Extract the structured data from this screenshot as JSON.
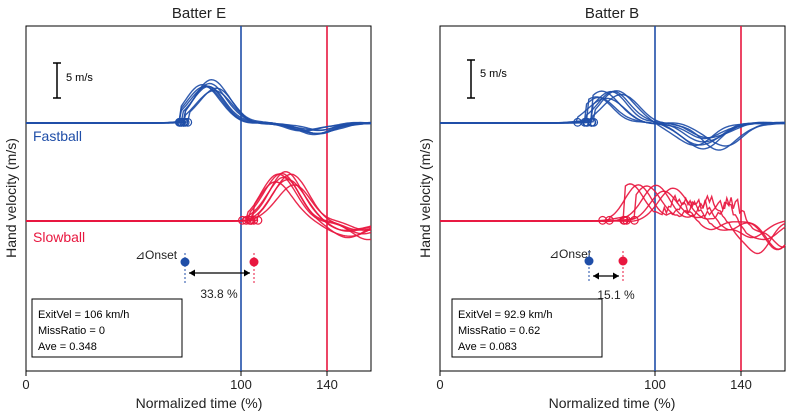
{
  "figure": {
    "ylabel": "Hand velocity (m/s)",
    "xlabel": "Normalized time (%)",
    "xticks": [
      "0",
      "100",
      "140"
    ],
    "scalebar_label": "5 m/s",
    "fast_label": "Fastball",
    "slow_label": "Slowball",
    "onset_label": "⊿Onset",
    "colors": {
      "fast": "#1f4ea8",
      "slow": "#e8173f",
      "axis": "#000000",
      "text": "#222222"
    }
  },
  "chart_data": [
    {
      "type": "line",
      "title": "Batter E",
      "xlabel": "Normalized time (%)",
      "ylabel": "Hand velocity (m/s)",
      "xlim": [
        0,
        160
      ],
      "x_ticks": [
        0,
        100,
        140
      ],
      "scale_bar_ms": 5,
      "vlines": [
        {
          "x": 100,
          "color": "#1f4ea8"
        },
        {
          "x": 140,
          "color": "#e8173f"
        }
      ],
      "series": [
        {
          "name": "Fastball",
          "color": "#1f4ea8",
          "traces": 8,
          "onset_x": [
            70,
            76
          ],
          "peak_x": [
            82,
            88
          ],
          "peak_ms": 6.0,
          "dip_x": [
            128,
            136
          ],
          "dip_ms": -1.5,
          "trend": "smooth"
        },
        {
          "name": "Slowball",
          "color": "#e8173f",
          "traces": 8,
          "onset_x": [
            98,
            110
          ],
          "peak_x": [
            116,
            124
          ],
          "peak_ms": 6.5,
          "dip_x": [
            148,
            160
          ],
          "dip_ms": -2.0,
          "trend": "smooth"
        }
      ],
      "onset_markers": {
        "label": "⊿Onset",
        "fast_x": 73,
        "slow_x": 106,
        "diff_label": "33.8 %"
      },
      "stats": {
        "exit_vel": "ExitVel = 106 km/h",
        "miss_ratio": "MissRatio = 0",
        "ave": "Ave = 0.348"
      }
    },
    {
      "type": "line",
      "title": "Batter B",
      "xlabel": "Normalized time (%)",
      "ylabel": "Hand velocity (m/s)",
      "xlim": [
        0,
        160
      ],
      "x_ticks": [
        0,
        100,
        140
      ],
      "scale_bar_ms": 5,
      "vlines": [
        {
          "x": 100,
          "color": "#1f4ea8"
        },
        {
          "x": 140,
          "color": "#e8173f"
        }
      ],
      "series": [
        {
          "name": "Fastball",
          "color": "#1f4ea8",
          "traces": 8,
          "onset_x": [
            60,
            74
          ],
          "peak_x": [
            72,
            84
          ],
          "peak_ms": 4.5,
          "dip_x": [
            116,
            132
          ],
          "dip_ms": -3.0,
          "trend": "smooth"
        },
        {
          "name": "Slowball",
          "color": "#e8173f",
          "traces": 6,
          "onset_x": [
            72,
            94
          ],
          "peak_x": [
            88,
            108
          ],
          "peak_ms": 5.0,
          "dip_x": [
            140,
            160
          ],
          "dip_ms": -3.5,
          "trend": "wavy"
        }
      ],
      "onset_markers": {
        "label": "⊿Onset",
        "fast_x": 68,
        "slow_x": 84,
        "diff_label": "15.1 %"
      },
      "stats": {
        "exit_vel": "ExitVel = 92.9 km/h",
        "miss_ratio": "MissRatio = 0.62",
        "ave": "Ave = 0.083"
      }
    }
  ]
}
